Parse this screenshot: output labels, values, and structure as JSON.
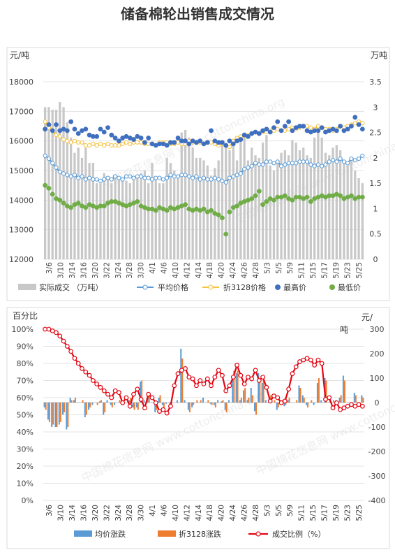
{
  "title": "储备棉轮出销售成交情况",
  "watermark": "中国棉花信息网 www.cottonchina.org",
  "chart_data": [
    {
      "type": "bar+line+scatter",
      "left_axis_unit": "元/吨",
      "right_axis_unit": "万吨",
      "ylim_left": [
        12000,
        18000
      ],
      "ylim_right": [
        0,
        3.5
      ],
      "left_ticks": [
        "12000",
        "13000",
        "14000",
        "15000",
        "16000",
        "17000",
        "18000"
      ],
      "right_ticks": [
        "0",
        "0.5",
        "1",
        "1.5",
        "2",
        "2.5",
        "3",
        "3.5"
      ],
      "x_ticks": [
        "3/6",
        "3/10",
        "3/14",
        "3/16",
        "3/20",
        "3/22",
        "3/24",
        "3/28",
        "3/30",
        "4/1",
        "4/6",
        "4/10",
        "4/12",
        "4/14",
        "4/18",
        "4/20",
        "4/24",
        "4/26",
        "4/28",
        "5/3",
        "5/5",
        "5/9",
        "5/11",
        "5/15",
        "5/17",
        "5/19",
        "5/23",
        "5/25"
      ],
      "grid": true,
      "legend_position": "bottom",
      "colors": {
        "volume": "#c8c8c8",
        "avg": "#5b9bd5",
        "folded": "#f5c242",
        "high": "#3f6fbf",
        "low": "#70ad47"
      },
      "series": [
        {
          "name": "实际成交 （万吨）",
          "axis": "right",
          "values": [
            3.0,
            3.0,
            2.95,
            2.95,
            3.1,
            3.0,
            2.7,
            2.4,
            2.1,
            2.2,
            2.0,
            2.2,
            1.9,
            1.9,
            1.5,
            1.5,
            1.7,
            1.6,
            1.5,
            1.6,
            1.6,
            1.55,
            1.55,
            1.5,
            1.6,
            1.65,
            1.7,
            1.75,
            1.5,
            1.9,
            1.6,
            1.5,
            1.5,
            2.0,
            1.9,
            1.75,
            1.6,
            2.5,
            2.55,
            2.4,
            2.2,
            2.0,
            2.0,
            1.95,
            1.85,
            1.65,
            1.8,
            1.95,
            2.3,
            2.25,
            2.15,
            2.3,
            1.95,
            2.35,
            2.5,
            1.95,
            2.2,
            2.05,
            2.0,
            2.3,
            2.45,
            1.85,
            1.75,
            1.9,
            2.1,
            2.15,
            2.05,
            2.35,
            2.3,
            2.15,
            2.2,
            2.05,
            2.0,
            2.4,
            2.5,
            2.4,
            2.1,
            2.05,
            2.2,
            2.25,
            2.15,
            1.95,
            1.85,
            1.95,
            1.75,
            1.6,
            1.5
          ]
        },
        {
          "name": "平均价格",
          "axis": "left",
          "values": [
            15500,
            15400,
            15250,
            15100,
            14950,
            14900,
            14850,
            14800,
            14850,
            14750,
            14800,
            14700,
            14750,
            14700,
            14700,
            14650,
            14700,
            14750,
            14700,
            14800,
            14750,
            14700,
            14800,
            14800,
            14750,
            14800,
            14800,
            14750,
            14750,
            14700,
            14750,
            14750,
            14700,
            14750,
            14850,
            14800,
            14800,
            14850,
            14850,
            14800,
            14750,
            14800,
            14700,
            14750,
            14700,
            14700,
            14750,
            14700,
            14650,
            14600,
            14750,
            14800,
            14850,
            14900,
            15050,
            15100,
            15150,
            15250,
            15200,
            15200,
            15300,
            15300,
            15250,
            15300,
            15150,
            15200,
            15250,
            15250,
            15250,
            15300,
            15300,
            15300,
            15200,
            15150,
            15200,
            15150,
            15200,
            15300,
            15350,
            15300,
            15400,
            15300,
            15250,
            15400,
            15350,
            15400,
            15500
          ]
        },
        {
          "name": "折3128价格",
          "axis": "left",
          "values": [
            16650,
            16450,
            16350,
            16200,
            16150,
            16050,
            16000,
            15950,
            16000,
            15950,
            15950,
            15850,
            15850,
            15900,
            15850,
            15900,
            15850,
            15900,
            15850,
            15850,
            15850,
            15900,
            15950,
            15900,
            15950,
            15950,
            15950,
            15900,
            15900,
            15900,
            15850,
            15950,
            15950,
            15950,
            15900,
            15900,
            15950,
            15900,
            15900,
            16000,
            15950,
            15950,
            15950,
            15900,
            15950,
            15950,
            15900,
            15850,
            15900,
            15850,
            15800,
            16000,
            16100,
            16150,
            16150,
            16200,
            16250,
            16300,
            16250,
            16300,
            16300,
            16350,
            16350,
            16400,
            16350,
            16350,
            16400,
            16450,
            16400,
            16450,
            16500,
            16500,
            16450,
            16400,
            16500,
            16450,
            16400,
            16400,
            16350,
            16400,
            16500,
            16450,
            16500,
            16550,
            16600,
            16650,
            16600
          ]
        },
        {
          "name": "最高价",
          "axis": "left",
          "values": [
            16400,
            16550,
            16350,
            16550,
            16350,
            16400,
            16350,
            16650,
            16400,
            16250,
            16350,
            16400,
            16200,
            16150,
            16150,
            16400,
            16300,
            16450,
            16200,
            16100,
            16000,
            16100,
            16150,
            16100,
            16050,
            16150,
            16100,
            15950,
            16100,
            15900,
            15850,
            15900,
            15900,
            15850,
            15950,
            15950,
            16100,
            16000,
            16000,
            15900,
            16000,
            15950,
            16000,
            15900,
            15950,
            16350,
            16000,
            15950,
            15950,
            15850,
            16000,
            15900,
            16000,
            16050,
            16200,
            16150,
            16250,
            16300,
            16250,
            16350,
            16400,
            16300,
            16450,
            16650,
            16350,
            16500,
            16650,
            16350,
            16450,
            16500,
            16500,
            16350,
            16300,
            16350,
            16350,
            16450,
            16300,
            16350,
            16400,
            16350,
            16500,
            16350,
            16400,
            16500,
            16800,
            16550,
            16400
          ]
        },
        {
          "name": "最低价",
          "axis": "left",
          "values": [
            14500,
            14400,
            14200,
            14050,
            14000,
            13900,
            13800,
            13750,
            13850,
            13900,
            13800,
            13750,
            13850,
            13800,
            13750,
            13800,
            13800,
            13900,
            13950,
            13950,
            13900,
            13850,
            13800,
            13850,
            13900,
            13950,
            13800,
            13750,
            13700,
            13700,
            13650,
            13750,
            13700,
            13650,
            13750,
            13700,
            13750,
            13800,
            13850,
            13700,
            13650,
            13700,
            13650,
            13700,
            13600,
            13650,
            13550,
            13500,
            13400,
            12850,
            13600,
            13750,
            13800,
            13900,
            13950,
            14000,
            14050,
            14150,
            14300,
            13850,
            13950,
            14050,
            14000,
            14100,
            14100,
            14150,
            14050,
            14000,
            14100,
            14100,
            14050,
            14100,
            13950,
            14050,
            14100,
            14150,
            14100,
            14150,
            14150,
            14200,
            14150,
            14050,
            14100,
            14150,
            14050,
            14100,
            14100
          ]
        }
      ]
    },
    {
      "type": "bar+line",
      "left_axis_unit": "百分比",
      "right_axis_unit": "元/吨",
      "ylim_left": [
        0,
        100
      ],
      "ylim_right": [
        -400,
        300
      ],
      "left_ticks": [
        "0%",
        "10%",
        "20%",
        "30%",
        "40%",
        "50%",
        "60%",
        "70%",
        "80%",
        "90%",
        "100%"
      ],
      "right_ticks": [
        "-400",
        "-300",
        "-200",
        "-100",
        "0",
        "100",
        "200",
        "300"
      ],
      "x_ticks": [
        "3/6",
        "3/10",
        "3/14",
        "3/16",
        "3/20",
        "3/22",
        "3/24",
        "3/28",
        "3/30",
        "4/1",
        "4/6",
        "4/10",
        "4/12",
        "4/14",
        "4/18",
        "4/20",
        "4/24",
        "4/26",
        "4/28",
        "5/3",
        "5/5",
        "5/9",
        "5/11",
        "5/15",
        "5/17",
        "5/19",
        "5/23",
        "5/25"
      ],
      "grid": true,
      "legend_position": "bottom",
      "colors": {
        "avg_change": "#5b9bd5",
        "folded_change": "#ed7d31",
        "ratio": "#e30613"
      },
      "series": [
        {
          "name": "均价涨跌",
          "axis": "right",
          "values": [
            -20,
            -70,
            -100,
            -100,
            -90,
            -50,
            -110,
            20,
            10,
            0,
            0,
            -60,
            -30,
            -10,
            0,
            5,
            -50,
            10,
            -10,
            -10,
            0,
            -5,
            0,
            10,
            -20,
            -20,
            85,
            10,
            20,
            0,
            -40,
            20,
            -10,
            -5,
            -10,
            0,
            10,
            220,
            10,
            -30,
            -20,
            0,
            0,
            20,
            0,
            -5,
            -10,
            10,
            5,
            -30,
            10,
            110,
            120,
            10,
            50,
            10,
            60,
            -35,
            120,
            80,
            10,
            20,
            0,
            -30,
            0,
            -15,
            10,
            0,
            0,
            70,
            30,
            -10,
            0,
            -10,
            80,
            10,
            100,
            0,
            0,
            10,
            20,
            110,
            0,
            -10,
            40,
            0,
            30
          ]
        },
        {
          "name": "折3128涨跌",
          "axis": "right",
          "values": [
            -30,
            -80,
            -90,
            -100,
            -80,
            -40,
            -100,
            10,
            20,
            0,
            10,
            -50,
            -20,
            0,
            -10,
            10,
            -40,
            0,
            -20,
            0,
            10,
            -10,
            0,
            20,
            -30,
            -30,
            90,
            0,
            30,
            0,
            -30,
            30,
            -20,
            0,
            -20,
            0,
            0,
            180,
            0,
            -40,
            -10,
            10,
            10,
            0,
            10,
            -10,
            -20,
            0,
            10,
            -40,
            0,
            130,
            130,
            20,
            60,
            20,
            30,
            -50,
            90,
            90,
            0,
            30,
            10,
            -20,
            10,
            -10,
            20,
            0,
            10,
            60,
            20,
            -20,
            10,
            0,
            100,
            0,
            90,
            10,
            10,
            0,
            30,
            90,
            0,
            0,
            30,
            0,
            20
          ]
        },
        {
          "name": "成交比例（%）",
          "axis": "left",
          "values": [
            100,
            100,
            99,
            98,
            96,
            93,
            90,
            87,
            83,
            80,
            77,
            75,
            73,
            70,
            68,
            66,
            64,
            62,
            60,
            64,
            63,
            57,
            60,
            55,
            62,
            65,
            59,
            54,
            62,
            60,
            57,
            52,
            53,
            51,
            55,
            67,
            74,
            76,
            77,
            72,
            71,
            67,
            70,
            68,
            71,
            67,
            72,
            76,
            73,
            64,
            67,
            72,
            79,
            73,
            68,
            72,
            71,
            76,
            70,
            72,
            66,
            58,
            61,
            60,
            57,
            58,
            65,
            74,
            78,
            81,
            82,
            83,
            82,
            79,
            82,
            80,
            59,
            60,
            54,
            57,
            53,
            54,
            55,
            56,
            55,
            56,
            55
          ]
        }
      ]
    }
  ]
}
